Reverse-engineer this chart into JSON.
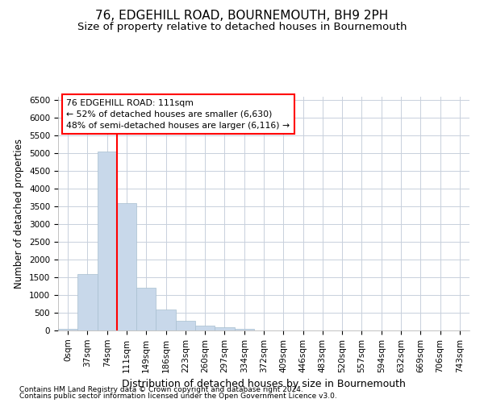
{
  "title": "76, EDGEHILL ROAD, BOURNEMOUTH, BH9 2PH",
  "subtitle": "Size of property relative to detached houses in Bournemouth",
  "xlabel": "Distribution of detached houses by size in Bournemouth",
  "ylabel": "Number of detached properties",
  "footer1": "Contains HM Land Registry data © Crown copyright and database right 2024.",
  "footer2": "Contains public sector information licensed under the Open Government Licence v3.0.",
  "annotation_title": "76 EDGEHILL ROAD: 111sqm",
  "annotation_line1": "← 52% of detached houses are smaller (6,630)",
  "annotation_line2": "48% of semi-detached houses are larger (6,116) →",
  "bar_color": "#c8d8ea",
  "bar_edge_color": "#a8bfd0",
  "vline_color": "red",
  "vline_x": 2.5,
  "categories": [
    "0sqm",
    "37sqm",
    "74sqm",
    "111sqm",
    "149sqm",
    "186sqm",
    "223sqm",
    "260sqm",
    "297sqm",
    "334sqm",
    "372sqm",
    "409sqm",
    "446sqm",
    "483sqm",
    "520sqm",
    "557sqm",
    "594sqm",
    "632sqm",
    "669sqm",
    "706sqm",
    "743sqm"
  ],
  "values": [
    50,
    1600,
    5050,
    3600,
    1200,
    600,
    270,
    130,
    90,
    50,
    10,
    5,
    3,
    2,
    1,
    0,
    0,
    0,
    0,
    0,
    0
  ],
  "ylim": [
    0,
    6600
  ],
  "yticks": [
    0,
    500,
    1000,
    1500,
    2000,
    2500,
    3000,
    3500,
    4000,
    4500,
    5000,
    5500,
    6000,
    6500
  ],
  "background_color": "#ffffff",
  "grid_color": "#c8d0dc",
  "title_fontsize": 11,
  "subtitle_fontsize": 9.5,
  "ylabel_fontsize": 8.5,
  "xlabel_fontsize": 9,
  "tick_fontsize": 7.5,
  "ann_fontsize": 7.8,
  "footer_fontsize": 6.5
}
